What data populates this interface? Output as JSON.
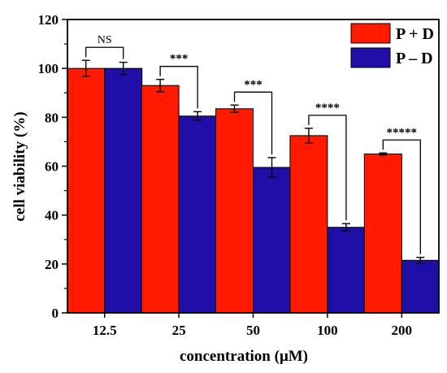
{
  "chart_data": {
    "type": "bar",
    "xlabel": "concentration (μM)",
    "ylabel": "cell viability (%)",
    "ylim": [
      0,
      120
    ],
    "yticks": [
      0,
      20,
      40,
      60,
      80,
      100,
      120
    ],
    "categories": [
      "12.5",
      "25",
      "50",
      "100",
      "200"
    ],
    "series": [
      {
        "name": "P + D",
        "color": "#ff1a00",
        "values": [
          100,
          93,
          83.5,
          72.5,
          65
        ],
        "errors": [
          3.3,
          2.5,
          1.5,
          3.0,
          0.4
        ]
      },
      {
        "name": "P – D",
        "color": "#1f0fa8",
        "values": [
          100,
          80.5,
          59.5,
          35,
          21.5
        ],
        "errors": [
          2.5,
          1.8,
          4.0,
          1.5,
          1.2
        ]
      }
    ],
    "significance": [
      "NS",
      "***",
      "***",
      "****",
      "*****"
    ],
    "legend_position": "top-right",
    "grid": false
  }
}
